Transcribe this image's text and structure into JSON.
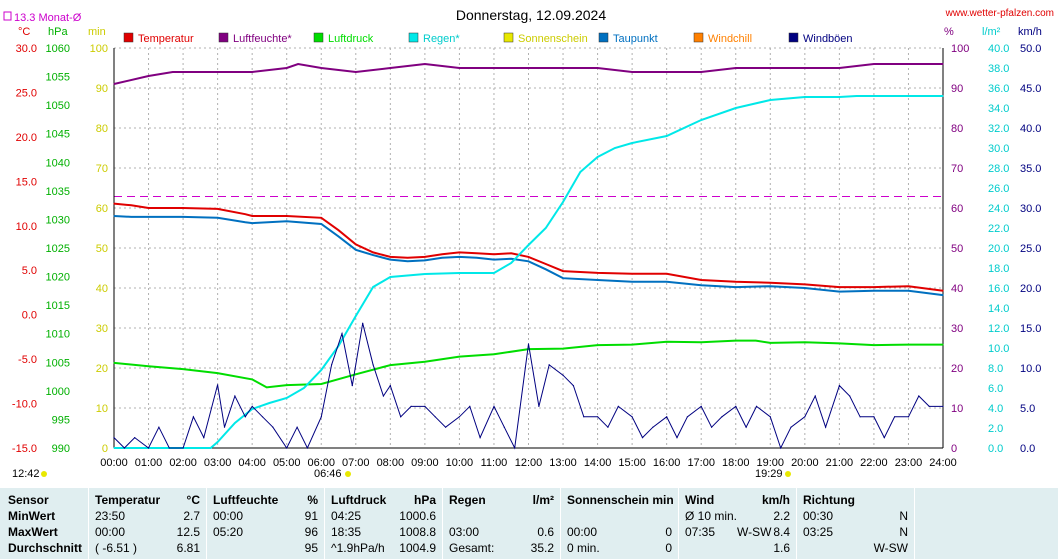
{
  "header": {
    "title": "Donnerstag, 12.09.2024",
    "website": "www.wetter-pfalzen.com",
    "monthly_avg": "13.3 Monat-Ø"
  },
  "axis_units": {
    "temp": "°C",
    "pressure": "hPa",
    "min": "min",
    "percent": "%",
    "rain": "l/m²",
    "wind": "km/h"
  },
  "axis_ticks": {
    "temp": [
      "30.0",
      "25.0",
      "20.0",
      "15.0",
      "10.0",
      "5.0",
      "0.0",
      "-5.0",
      "-10.0",
      "-15.0"
    ],
    "pressure": [
      "1060",
      "1055",
      "1050",
      "1045",
      "1040",
      "1035",
      "1030",
      "1025",
      "1020",
      "1015",
      "1010",
      "1005",
      "1000",
      "995",
      "990"
    ],
    "minutes": [
      "100",
      "90",
      "80",
      "70",
      "60",
      "50",
      "40",
      "30",
      "20",
      "10",
      "0"
    ],
    "percent": [
      "100",
      "90",
      "80",
      "70",
      "60",
      "50",
      "40",
      "30",
      "20",
      "10",
      "0"
    ],
    "rain": [
      "40.0",
      "38.0",
      "36.0",
      "34.0",
      "32.0",
      "30.0",
      "28.0",
      "26.0",
      "24.0",
      "22.0",
      "20.0",
      "18.0",
      "16.0",
      "14.0",
      "12.0",
      "10.0",
      "8.0",
      "6.0",
      "4.0",
      "2.0",
      "0.0"
    ],
    "wind": [
      "50.0",
      "45.0",
      "40.0",
      "35.0",
      "30.0",
      "25.0",
      "20.0",
      "15.0",
      "10.0",
      "5.0",
      "0.0"
    ],
    "time": [
      "00:00",
      "01:00",
      "02:00",
      "03:00",
      "04:00",
      "05:00",
      "06:00",
      "07:00",
      "08:00",
      "09:00",
      "10:00",
      "11:00",
      "12:00",
      "13:00",
      "14:00",
      "15:00",
      "16:00",
      "17:00",
      "18:00",
      "19:00",
      "20:00",
      "21:00",
      "22:00",
      "23:00",
      "24:00"
    ]
  },
  "sun_events": {
    "left_time": "12:42",
    "sunrise": "06:46",
    "sunset": "19:29"
  },
  "legend": [
    {
      "label": "Temperatur",
      "color": "#e00000"
    },
    {
      "label": "Luftfeuchte*",
      "color": "#800080"
    },
    {
      "label": "Luftdruck",
      "color": "#00dd00"
    },
    {
      "label": "Regen*",
      "color": "#00e8e8"
    },
    {
      "label": "Sonnenschein",
      "color": "#e8e800"
    },
    {
      "label": "Taupunkt",
      "color": "#0070c0"
    },
    {
      "label": "Windchill",
      "color": "#ff8000"
    },
    {
      "label": "Windböen",
      "color": "#000080"
    }
  ],
  "chart_data": {
    "type": "line",
    "title": "Donnerstag, 12.09.2024",
    "x_unit": "hours",
    "xlim": [
      0,
      24
    ],
    "monthly_avg_temp": 13.3,
    "series": [
      {
        "name": "Temperatur",
        "unit": "°C",
        "color": "#e00000",
        "x": [
          0,
          0.5,
          1,
          2,
          3,
          3.8,
          4,
          5,
          6,
          6.5,
          7,
          7.5,
          8,
          8.5,
          9,
          9.5,
          10,
          10.5,
          11,
          11.5,
          12,
          12.5,
          13,
          14,
          15,
          16,
          17,
          18,
          19,
          20,
          21,
          22,
          23,
          24
        ],
        "y": [
          12.5,
          12.3,
          12.0,
          12.0,
          11.9,
          11.3,
          11.1,
          11.1,
          10.9,
          9.5,
          7.9,
          7.0,
          6.5,
          6.4,
          6.5,
          6.8,
          7.0,
          6.9,
          6.8,
          6.9,
          6.5,
          5.7,
          4.9,
          4.7,
          4.6,
          4.6,
          3.9,
          3.7,
          3.6,
          3.4,
          3.1,
          3.1,
          3.2,
          2.7
        ]
      },
      {
        "name": "Taupunkt",
        "unit": "°C",
        "color": "#0070c0",
        "x": [
          0,
          0.5,
          1,
          2,
          3,
          3.8,
          4,
          5,
          6,
          6.5,
          7,
          7.5,
          8,
          8.5,
          9,
          9.5,
          10,
          10.5,
          11,
          11.5,
          12,
          12.5,
          13,
          14,
          15,
          16,
          17,
          18,
          19,
          20,
          21,
          22,
          23,
          24
        ],
        "y": [
          11.1,
          11.0,
          11.0,
          11.0,
          10.9,
          10.4,
          10.3,
          10.5,
          10.2,
          8.8,
          7.3,
          6.7,
          6.2,
          6.0,
          6.1,
          6.4,
          6.5,
          6.4,
          6.2,
          6.3,
          6.0,
          5.1,
          4.1,
          3.9,
          3.7,
          3.7,
          3.3,
          3.1,
          3.2,
          3.0,
          2.6,
          2.7,
          2.7,
          2.2
        ]
      },
      {
        "name": "Luftfeuchte*",
        "unit": "%",
        "color": "#800080",
        "x": [
          0,
          1,
          1.7,
          3,
          4,
          5,
          5.33,
          6,
          7,
          8,
          9,
          10,
          11,
          12,
          13,
          14,
          15,
          16,
          17,
          18,
          19,
          20,
          21,
          22,
          23,
          24
        ],
        "y": [
          91,
          93,
          94,
          94,
          94,
          95,
          96,
          95,
          94,
          95,
          96,
          95,
          95,
          95,
          95,
          95,
          94,
          94,
          94,
          95,
          95,
          95,
          95,
          96,
          96,
          96
        ]
      },
      {
        "name": "Luftdruck",
        "unit": "hPa",
        "color": "#00dd00",
        "x": [
          0,
          1,
          2,
          3,
          4,
          4.42,
          5,
          6,
          7,
          8,
          9,
          10,
          11,
          12,
          13,
          14,
          15,
          16,
          17,
          18,
          18.58,
          19,
          20,
          21,
          22,
          23,
          24
        ],
        "y": [
          1004.9,
          1004.3,
          1003.8,
          1003.1,
          1002.0,
          1000.6,
          1001.0,
          1001.2,
          1002.9,
          1004.5,
          1005.1,
          1006.0,
          1006.4,
          1007.3,
          1007.4,
          1008.0,
          1008.1,
          1008.6,
          1008.5,
          1008.8,
          1008.8,
          1008.4,
          1008.5,
          1008.3,
          1008.0,
          1008.1,
          1008.1
        ]
      },
      {
        "name": "Regen*",
        "unit": "l/m²",
        "color": "#00e8e8",
        "x": [
          0,
          2,
          2.8,
          3,
          3.5,
          4,
          4.5,
          5,
          5.5,
          6,
          6.5,
          7,
          7.5,
          8,
          9,
          10,
          11,
          11.5,
          12,
          12.5,
          13,
          13.5,
          14,
          14.5,
          15,
          16,
          17,
          18,
          19,
          20,
          21,
          21.5,
          22,
          24
        ],
        "y": [
          0,
          0,
          0,
          0.6,
          2.5,
          3.9,
          4.5,
          5.0,
          6.0,
          7.8,
          10.2,
          13.2,
          16.1,
          17.1,
          17.4,
          17.5,
          17.5,
          18.5,
          20.3,
          22.0,
          24.6,
          27.6,
          29.1,
          30.0,
          30.5,
          31.2,
          32.8,
          34.0,
          34.8,
          35.1,
          35.1,
          35.2,
          35.2,
          35.2
        ]
      },
      {
        "name": "Windböen",
        "unit": "km/h",
        "color": "#000080",
        "x": [
          0,
          0.3,
          0.6,
          1,
          1.3,
          1.6,
          2,
          2.3,
          2.6,
          3,
          3.2,
          3.5,
          3.8,
          4,
          4.3,
          4.6,
          5,
          5.3,
          5.6,
          6,
          6.3,
          6.6,
          6.9,
          7.2,
          7.5,
          7.8,
          8,
          8.3,
          8.6,
          9,
          9.3,
          9.6,
          10,
          10.3,
          10.6,
          11,
          11.3,
          11.6,
          12,
          12.3,
          12.6,
          13,
          13.3,
          13.6,
          14,
          14.3,
          14.6,
          15,
          15.3,
          15.6,
          16,
          16.3,
          16.6,
          17,
          17.3,
          17.6,
          18,
          18.3,
          18.6,
          19,
          19.3,
          19.6,
          20,
          20.3,
          20.6,
          21,
          21.3,
          21.6,
          22,
          22.3,
          22.6,
          23,
          23.3,
          23.6,
          24
        ],
        "y": [
          1.3,
          0,
          1.3,
          0,
          2.6,
          0,
          0,
          3.9,
          1.3,
          7.9,
          2.6,
          6.5,
          3.9,
          5.2,
          3.9,
          2.6,
          0,
          2.6,
          0,
          3.9,
          10.4,
          14.3,
          7.8,
          15.6,
          10.4,
          6.5,
          7.8,
          3.9,
          5.2,
          5.2,
          3.9,
          2.6,
          3.9,
          5.2,
          1.3,
          5.2,
          2.6,
          0,
          13.0,
          5.2,
          10.4,
          9.1,
          7.8,
          3.9,
          3.9,
          2.6,
          5.2,
          3.9,
          1.3,
          2.6,
          3.9,
          1.3,
          3.9,
          5.2,
          2.6,
          3.9,
          5.2,
          2.6,
          5.2,
          3.9,
          0,
          2.6,
          3.9,
          6.5,
          2.6,
          7.8,
          6.5,
          3.9,
          3.9,
          1.3,
          3.9,
          3.9,
          6.5,
          5.2,
          5.2
        ]
      }
    ]
  },
  "table": {
    "headers": {
      "sensor": "Sensor",
      "temp": "Temperatur",
      "temp_unit": "°C",
      "hum": "Luftfeuchte",
      "hum_unit": "%",
      "press": "Luftdruck",
      "press_unit": "hPa",
      "rain": "Regen",
      "rain_unit": "l/m²",
      "sun": "Sonnenschein min",
      "wind": "Wind",
      "wind_unit": "km/h",
      "dir": "Richtung"
    },
    "rows": [
      {
        "label": "MinWert",
        "temp_time": "23:50",
        "temp_val": "2.7",
        "hum_time": "00:00",
        "hum_val": "91",
        "press_time": "04:25",
        "press_val": "1000.6",
        "rain_time": "",
        "rain_val": "",
        "sun_time": "",
        "sun_val": "",
        "wind_time": "Ø 10 min.",
        "wind_dir": "",
        "wind_val": "2.2",
        "dir_time": "00:30",
        "dir_val": "N"
      },
      {
        "label": "MaxWert",
        "temp_time": "00:00",
        "temp_val": "12.5",
        "hum_time": "05:20",
        "hum_val": "96",
        "press_time": "18:35",
        "press_val": "1008.8",
        "rain_time": "03:00",
        "rain_val": "0.6",
        "sun_time": "00:00",
        "sun_val": "0",
        "wind_time": "07:35",
        "wind_dir": "W-SW",
        "wind_val": "8.4",
        "dir_time": "03:25",
        "dir_val": "N"
      },
      {
        "label": "Durchschnitt",
        "temp_time": "( -6.51 )",
        "temp_val": "6.81",
        "hum_time": "",
        "hum_val": "95",
        "press_time": "^1.9hPa/h",
        "press_val": "1004.9",
        "rain_time": "Gesamt:",
        "rain_val": "35.2",
        "sun_time": "0 min.",
        "sun_val": "0",
        "wind_time": "",
        "wind_dir": "",
        "wind_val": "1.6",
        "dir_time": "",
        "dir_val": "W-SW"
      }
    ]
  }
}
